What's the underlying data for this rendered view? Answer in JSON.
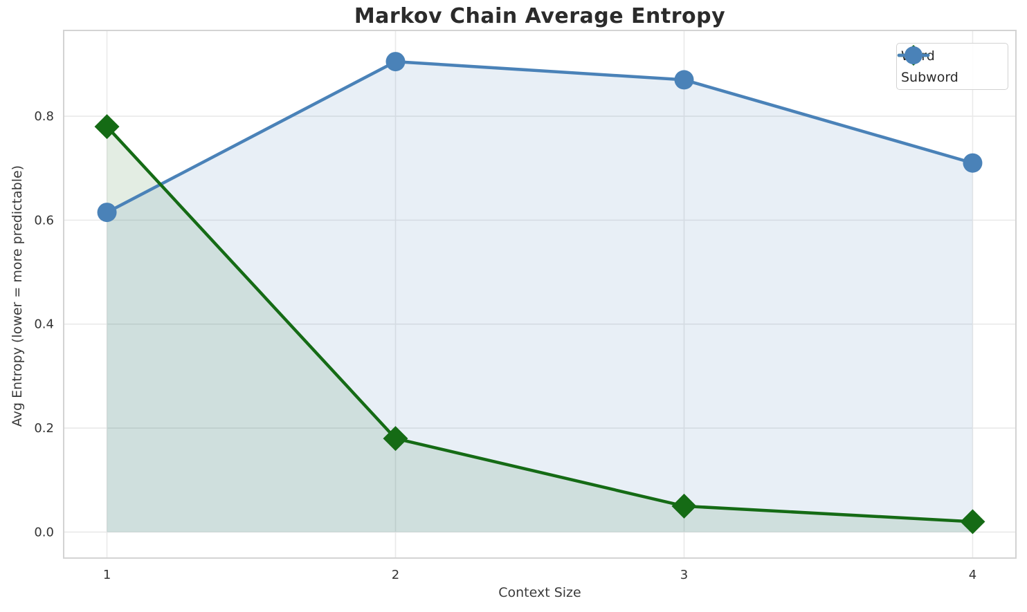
{
  "figure": {
    "title": "Markov Chain Average Entropy"
  },
  "chart_data": {
    "type": "line",
    "title": "Markov Chain Average Entropy",
    "xlabel": "Context Size",
    "ylabel": "Avg Entropy (lower = more predictable)",
    "x": [
      1,
      2,
      3,
      4
    ],
    "series": [
      {
        "name": "Word",
        "marker": "diamond",
        "color": "#156b15",
        "fill_alpha": 0.12,
        "values": [
          0.78,
          0.18,
          0.05,
          0.02
        ]
      },
      {
        "name": "Subword",
        "marker": "circle",
        "color": "#4a82b8",
        "fill_alpha": 0.13,
        "values": [
          0.615,
          0.905,
          0.87,
          0.71
        ]
      }
    ],
    "xticks": [
      1,
      2,
      3,
      4
    ],
    "yticks": [
      0.0,
      0.2,
      0.4,
      0.6,
      0.8
    ],
    "xlim": [
      0.85,
      4.15
    ],
    "ylim": [
      -0.05,
      0.965
    ],
    "grid": true,
    "area_fill": true,
    "area_baseline": 0,
    "legend_position": "upper right",
    "colors": {
      "grid": "#e9e9e9",
      "spine": "#d3d3d3",
      "tick_text": "#333333",
      "title_text": "#2b2b2b",
      "label_text": "#3a3a3a",
      "background": "#ffffff"
    }
  }
}
